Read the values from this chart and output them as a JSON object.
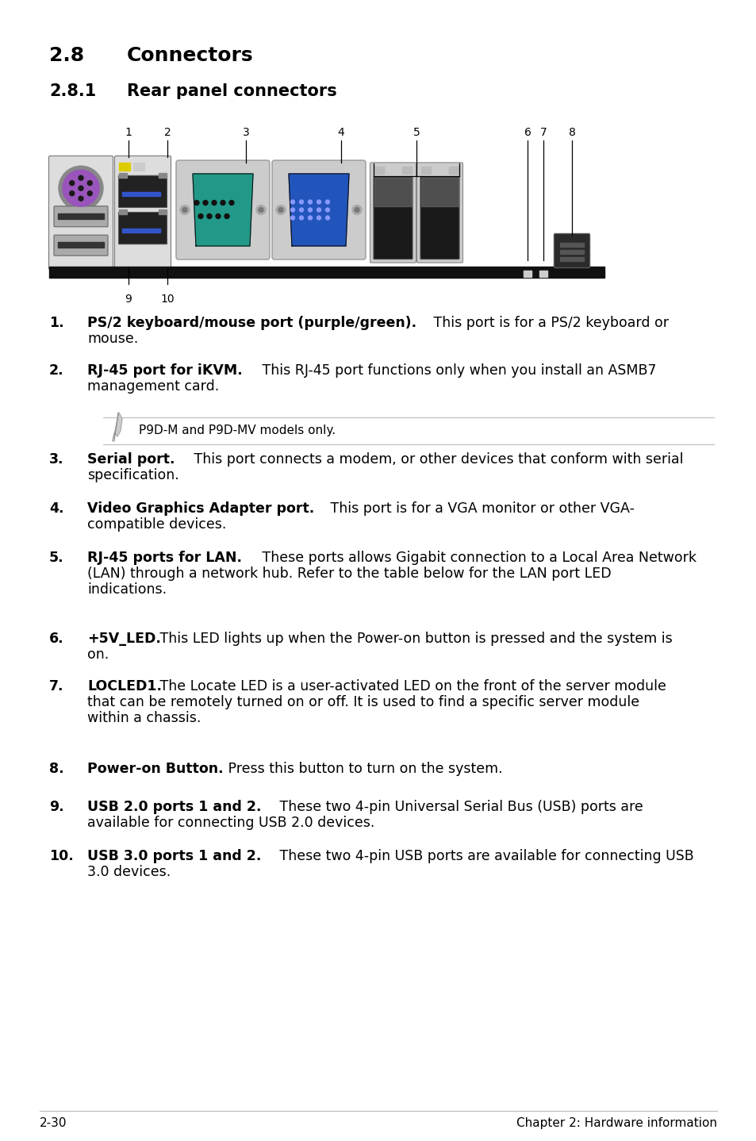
{
  "bg_color": "#ffffff",
  "text_color": "#000000",
  "heading1_num": "2.8",
  "heading1_text": "Connectors",
  "heading2_num": "2.8.1",
  "heading2_text": "Rear panel connectors",
  "note_text": "P9D-M and P9D-MV models only.",
  "footer_left": "2-30",
  "footer_right": "Chapter 2: Hardware information",
  "items": [
    {
      "num": "1.",
      "bold": "PS/2 keyboard/mouse port (purple/green).",
      "normal": " This port is for a PS/2 keyboard or mouse.",
      "lines": 2
    },
    {
      "num": "2.",
      "bold": "RJ-45 port for iKVM.",
      "normal": " This RJ-45 port functions only when you install an ASMB7 management card.",
      "lines": 2
    },
    {
      "num": "3.",
      "bold": "Serial port.",
      "normal": " This port connects a modem, or other devices that conform with serial specification.",
      "lines": 2
    },
    {
      "num": "4.",
      "bold": "Video Graphics Adapter port.",
      "normal": " This port is for a VGA monitor or other VGA-compatible devices.",
      "lines": 2
    },
    {
      "num": "5.",
      "bold": "RJ-45 ports for LAN.",
      "normal": " These ports allows Gigabit connection to a Local Area Network (LAN) through a network hub. Refer to the table below for the LAN port LED indications.",
      "lines": 3
    },
    {
      "num": "6.",
      "bold": "+5V_LED.",
      "normal": " This LED lights up when the Power-on button is pressed and the system is on.",
      "lines": 2
    },
    {
      "num": "7.",
      "bold": "LOCLED1.",
      "normal": " The Locate LED is a user-activated LED on the front of the server module that can be remotely turned on or off. It is used to find a specific server module within a chassis.",
      "lines": 3
    },
    {
      "num": "8.",
      "bold": "Power-on Button.",
      "normal": " Press this button to turn on the system.",
      "lines": 1
    },
    {
      "num": "9.",
      "bold": "USB 2.0 ports 1 and 2.",
      "normal": " These two 4-pin Universal Serial Bus (USB) ports are available for connecting USB 2.0 devices.",
      "lines": 2
    },
    {
      "num": "10.",
      "bold": "USB 3.0 ports 1 and 2.",
      "normal": " These two 4-pin USB ports are available for connecting USB 3.0 devices.",
      "lines": 2
    }
  ]
}
